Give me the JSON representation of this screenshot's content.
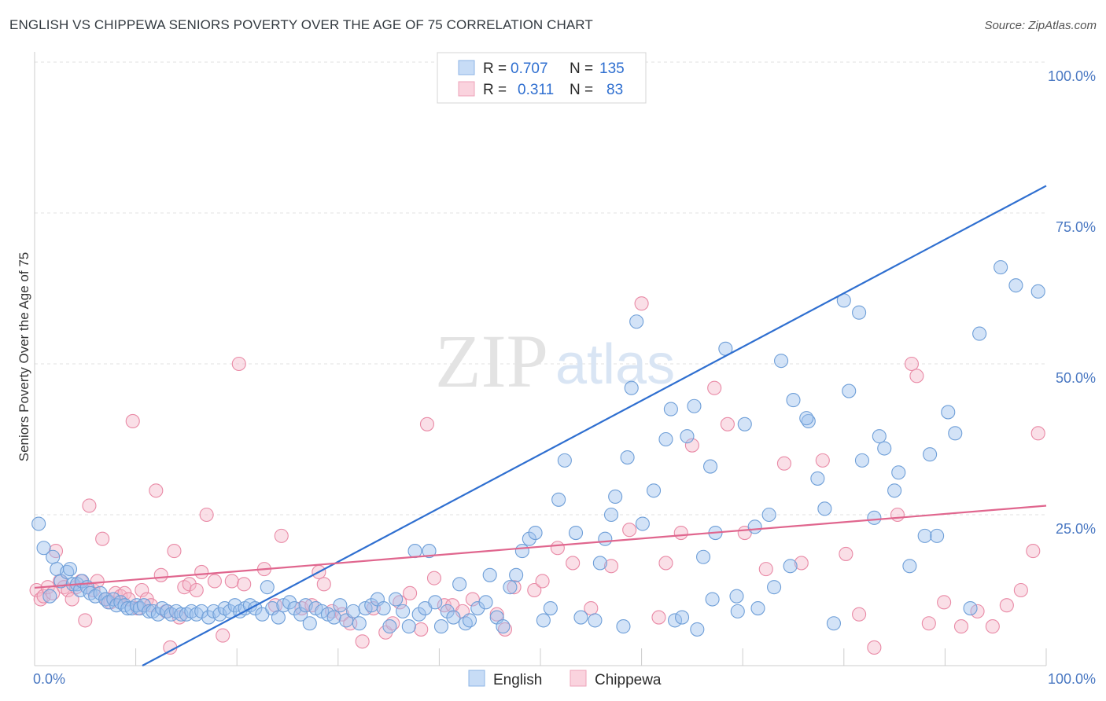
{
  "header": {
    "title": "ENGLISH VS CHIPPEWA SENIORS POVERTY OVER THE AGE OF 75 CORRELATION CHART",
    "source": "Source: ZipAtlas.com"
  },
  "watermark": {
    "part1": "ZIP",
    "part2": "atlas"
  },
  "stats_legend": [
    {
      "r_label": "R =",
      "r_value": "0.707",
      "n_label": "N =",
      "n_value": "135",
      "color": "#9dc1ee"
    },
    {
      "r_label": "R =",
      "r_value": "0.311",
      "n_label": "N =",
      "n_value": "83",
      "color": "#f5b8c9"
    }
  ],
  "chart_data": {
    "type": "scatter",
    "title": "ENGLISH VS CHIPPEWA SENIORS POVERTY OVER THE AGE OF 75 CORRELATION CHART",
    "xlabel": "",
    "ylabel": "Seniors Poverty Over the Age of 75",
    "xlim": [
      0,
      100
    ],
    "ylim": [
      0,
      100
    ],
    "x_tick_labels": [
      "0.0%",
      "100.0%"
    ],
    "y_ticks": [
      25,
      50,
      75,
      100
    ],
    "y_tick_labels": [
      "25.0%",
      "50.0%",
      "75.0%",
      "100.0%"
    ],
    "grid": true,
    "legend_position": "bottom-center",
    "series": [
      {
        "name": "English",
        "color": "#9dc1ee",
        "edge": "#6f9fd8",
        "line_color": "#2f6fd0",
        "trend": {
          "x0": 0,
          "y0": -11,
          "x1": 100,
          "y1": 79.5
        },
        "points": [
          [
            0.4,
            23.5
          ],
          [
            0.9,
            19.5
          ],
          [
            1.5,
            11.5
          ],
          [
            1.8,
            18
          ],
          [
            2.2,
            16
          ],
          [
            2.6,
            14
          ],
          [
            3.2,
            15.5
          ],
          [
            3.5,
            16
          ],
          [
            3.8,
            13.5
          ],
          [
            4.2,
            13.5
          ],
          [
            4.5,
            12.5
          ],
          [
            4.7,
            14
          ],
          [
            5.2,
            13
          ],
          [
            5.5,
            12
          ],
          [
            6,
            11.5
          ],
          [
            6.5,
            12
          ],
          [
            7,
            11
          ],
          [
            7.3,
            10.5
          ],
          [
            7.8,
            11
          ],
          [
            8.1,
            10
          ],
          [
            8.5,
            10.5
          ],
          [
            8.9,
            10
          ],
          [
            9.2,
            9.5
          ],
          [
            9.6,
            9.5
          ],
          [
            10.1,
            10
          ],
          [
            10.4,
            9.5
          ],
          [
            10.8,
            10
          ],
          [
            11.3,
            9
          ],
          [
            11.7,
            9
          ],
          [
            12.2,
            8.5
          ],
          [
            12.6,
            9.5
          ],
          [
            13.1,
            9
          ],
          [
            13.5,
            8.5
          ],
          [
            14,
            9
          ],
          [
            14.5,
            8.5
          ],
          [
            15,
            8.5
          ],
          [
            15.5,
            9
          ],
          [
            16,
            8.5
          ],
          [
            16.5,
            9
          ],
          [
            17.2,
            8
          ],
          [
            17.7,
            9
          ],
          [
            18.3,
            8.5
          ],
          [
            18.8,
            9.5
          ],
          [
            19.3,
            9
          ],
          [
            19.8,
            10
          ],
          [
            20.3,
            9
          ],
          [
            20.8,
            9.5
          ],
          [
            21.3,
            10
          ],
          [
            21.8,
            9.5
          ],
          [
            22.5,
            8.5
          ],
          [
            23,
            13
          ],
          [
            23.5,
            9.5
          ],
          [
            24.1,
            8
          ],
          [
            24.6,
            10
          ],
          [
            25.2,
            10.5
          ],
          [
            25.7,
            9.5
          ],
          [
            26.3,
            8.5
          ],
          [
            26.8,
            10
          ],
          [
            27.2,
            7
          ],
          [
            27.8,
            9.5
          ],
          [
            28.4,
            9
          ],
          [
            29,
            8.5
          ],
          [
            29.6,
            8
          ],
          [
            30.2,
            10
          ],
          [
            30.8,
            7.5
          ],
          [
            31.5,
            9
          ],
          [
            32.1,
            7
          ],
          [
            32.7,
            9.5
          ],
          [
            33.3,
            10
          ],
          [
            33.9,
            11
          ],
          [
            34.5,
            9.5
          ],
          [
            35.1,
            6.5
          ],
          [
            35.7,
            11
          ],
          [
            36.4,
            9
          ],
          [
            37,
            6.5
          ],
          [
            37.6,
            19
          ],
          [
            38,
            8.5
          ],
          [
            38.6,
            9.5
          ],
          [
            39,
            19
          ],
          [
            39.6,
            10.5
          ],
          [
            40.2,
            6.5
          ],
          [
            40.8,
            9
          ],
          [
            41.4,
            8
          ],
          [
            42,
            13.5
          ],
          [
            42.6,
            7
          ],
          [
            43,
            7.5
          ],
          [
            43.8,
            9.5
          ],
          [
            44.6,
            10.5
          ],
          [
            45,
            15
          ],
          [
            45.7,
            8
          ],
          [
            46.3,
            6.5
          ],
          [
            47,
            13
          ],
          [
            47.6,
            15
          ],
          [
            48.2,
            19
          ],
          [
            48.9,
            21
          ],
          [
            49.5,
            22
          ],
          [
            50.3,
            7.5
          ],
          [
            51,
            9.5
          ],
          [
            51.8,
            27.5
          ],
          [
            52.4,
            34
          ],
          [
            53.5,
            22
          ],
          [
            54,
            8
          ],
          [
            55.4,
            7.5
          ],
          [
            55.9,
            17
          ],
          [
            56.4,
            21
          ],
          [
            57,
            25
          ],
          [
            57.4,
            28
          ],
          [
            58.2,
            6.5
          ],
          [
            58.6,
            34.5
          ],
          [
            59,
            46
          ],
          [
            59.5,
            57
          ],
          [
            60.1,
            23.5
          ],
          [
            61.2,
            29
          ],
          [
            62.4,
            37.5
          ],
          [
            62.9,
            42.5
          ],
          [
            63.3,
            7.5
          ],
          [
            64.5,
            38
          ],
          [
            65.2,
            43
          ],
          [
            66.1,
            18
          ],
          [
            66.8,
            33
          ],
          [
            67.3,
            22
          ],
          [
            68.3,
            52.5
          ],
          [
            69.4,
            11.5
          ],
          [
            70.2,
            40
          ],
          [
            71.5,
            9.5
          ],
          [
            73.1,
            13
          ],
          [
            73.8,
            50.5
          ],
          [
            75,
            44
          ],
          [
            76.5,
            40.5
          ],
          [
            77.4,
            31
          ],
          [
            79,
            7
          ],
          [
            80,
            60.5
          ],
          [
            81.5,
            58.5
          ],
          [
            83,
            24.5
          ],
          [
            84,
            36
          ],
          [
            85,
            29
          ],
          [
            86.5,
            16.5
          ],
          [
            88.5,
            35
          ],
          [
            90.3,
            42
          ],
          [
            92.5,
            9.5
          ],
          [
            64,
            8
          ],
          [
            65.5,
            6
          ],
          [
            67,
            11
          ],
          [
            69.5,
            9
          ],
          [
            71.2,
            23
          ],
          [
            72.6,
            25
          ],
          [
            74.7,
            16.5
          ],
          [
            76.3,
            41
          ],
          [
            78.1,
            26
          ],
          [
            80.5,
            45.5
          ],
          [
            81.8,
            34
          ],
          [
            83.5,
            38
          ],
          [
            85.4,
            32
          ],
          [
            88,
            21.5
          ],
          [
            89.2,
            21.5
          ],
          [
            91,
            38.5
          ],
          [
            93.4,
            55
          ],
          [
            95.5,
            66
          ],
          [
            97,
            63
          ],
          [
            99.2,
            62
          ]
        ]
      },
      {
        "name": "Chippewa",
        "color": "#f5b8c9",
        "edge": "#e98aa6",
        "line_color": "#e0668e",
        "trend": {
          "x0": 0,
          "y0": 12.9,
          "x1": 100,
          "y1": 26.5
        },
        "points": [
          [
            0.2,
            12.5
          ],
          [
            0.6,
            11
          ],
          [
            0.9,
            11.5
          ],
          [
            1.3,
            13
          ],
          [
            1.8,
            12
          ],
          [
            2.1,
            19
          ],
          [
            2.5,
            14
          ],
          [
            2.9,
            13
          ],
          [
            3.3,
            12.5
          ],
          [
            3.7,
            11
          ],
          [
            4.1,
            13
          ],
          [
            4.6,
            14
          ],
          [
            5,
            7.5
          ],
          [
            5.4,
            26.5
          ],
          [
            5.8,
            12.5
          ],
          [
            6.2,
            14
          ],
          [
            6.7,
            21
          ],
          [
            7.1,
            11
          ],
          [
            7.5,
            10.5
          ],
          [
            8,
            12
          ],
          [
            8.5,
            11.5
          ],
          [
            8.9,
            12
          ],
          [
            9.3,
            11
          ],
          [
            9.7,
            40.5
          ],
          [
            10.2,
            9.5
          ],
          [
            10.6,
            12.5
          ],
          [
            11.1,
            11
          ],
          [
            11.5,
            10
          ],
          [
            12,
            29
          ],
          [
            12.5,
            15
          ],
          [
            13,
            9
          ],
          [
            13.4,
            3
          ],
          [
            13.8,
            19
          ],
          [
            14.3,
            8
          ],
          [
            14.8,
            13
          ],
          [
            15.3,
            13.5
          ],
          [
            16,
            12.5
          ],
          [
            16.5,
            15.5
          ],
          [
            17,
            25
          ],
          [
            17.8,
            14
          ],
          [
            18.6,
            5
          ],
          [
            19.5,
            14
          ],
          [
            20.2,
            50
          ],
          [
            20.7,
            13.5
          ],
          [
            22.7,
            16
          ],
          [
            23.8,
            10
          ],
          [
            24.4,
            21.5
          ],
          [
            26.4,
            9.5
          ],
          [
            27.4,
            10
          ],
          [
            28.1,
            15.5
          ],
          [
            28.6,
            13.5
          ],
          [
            29.4,
            9
          ],
          [
            30.4,
            8.5
          ],
          [
            31.2,
            7
          ],
          [
            32.4,
            4
          ],
          [
            33.5,
            9.5
          ],
          [
            34.7,
            5.5
          ],
          [
            35.4,
            7
          ],
          [
            36.1,
            10.5
          ],
          [
            37.1,
            12
          ],
          [
            38.2,
            6
          ],
          [
            38.8,
            40
          ],
          [
            39.5,
            14.5
          ],
          [
            40.5,
            10
          ],
          [
            41.3,
            10
          ],
          [
            42.3,
            9
          ],
          [
            43.3,
            11
          ],
          [
            45.7,
            8.5
          ],
          [
            46.5,
            6
          ],
          [
            47.4,
            13
          ],
          [
            49.4,
            12.5
          ],
          [
            50.2,
            14
          ],
          [
            51.7,
            19.5
          ],
          [
            53.2,
            17
          ],
          [
            55,
            9.5
          ],
          [
            57,
            16.5
          ],
          [
            58.8,
            22.5
          ],
          [
            60,
            60
          ],
          [
            61.7,
            8
          ],
          [
            62.4,
            17
          ],
          [
            63.9,
            22
          ],
          [
            65,
            36.5
          ],
          [
            67.2,
            46
          ],
          [
            68.5,
            40
          ],
          [
            70.2,
            22
          ],
          [
            72.3,
            16
          ],
          [
            74.1,
            33.5
          ],
          [
            75.8,
            17
          ],
          [
            77.9,
            34
          ],
          [
            80.2,
            18.5
          ],
          [
            81.5,
            8.5
          ],
          [
            83,
            3
          ],
          [
            85.3,
            25
          ],
          [
            86.7,
            50
          ],
          [
            87.2,
            48
          ],
          [
            88.4,
            7
          ],
          [
            89.9,
            10.5
          ],
          [
            91.6,
            6.5
          ],
          [
            93.2,
            9
          ],
          [
            94.7,
            6.5
          ],
          [
            96.1,
            10
          ],
          [
            97.5,
            12.5
          ],
          [
            98.7,
            19
          ],
          [
            99.2,
            38.5
          ]
        ]
      }
    ]
  },
  "bottom_legend": [
    {
      "label": "English",
      "color": "#9dc1ee"
    },
    {
      "label": "Chippewa",
      "color": "#f5b8c9"
    }
  ]
}
